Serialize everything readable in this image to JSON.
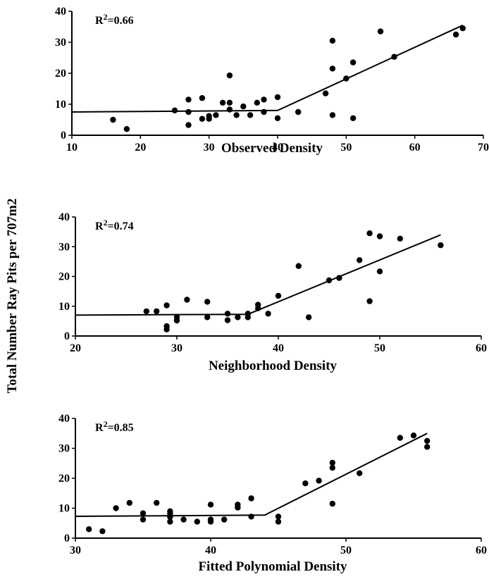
{
  "ylabel": "Total Number Ray Pits per 707m2",
  "chart_data": [
    {
      "type": "scatter",
      "xlabel": "Observed Density",
      "r2_prefix": "R",
      "r2_exp": "2",
      "r2_value": "=0.66",
      "xlim": [
        10,
        70
      ],
      "ylim": [
        0,
        40
      ],
      "xticks": [
        10,
        20,
        30,
        40,
        50,
        60,
        70
      ],
      "yticks": [
        0,
        10,
        20,
        30,
        40
      ],
      "fit_line": [
        [
          10,
          7.5
        ],
        [
          40,
          8
        ],
        [
          67,
          35.5
        ]
      ],
      "points": [
        [
          16,
          5
        ],
        [
          18,
          2
        ],
        [
          25,
          8
        ],
        [
          27,
          11.5
        ],
        [
          27,
          7.5
        ],
        [
          27,
          3.3
        ],
        [
          29,
          12
        ],
        [
          29,
          5.3
        ],
        [
          30,
          6.2
        ],
        [
          30,
          5.3
        ],
        [
          31,
          6.5
        ],
        [
          32,
          10.5
        ],
        [
          33,
          10.5
        ],
        [
          33,
          19.3
        ],
        [
          33,
          8.3
        ],
        [
          34,
          6.5
        ],
        [
          35,
          9.3
        ],
        [
          36,
          6.5
        ],
        [
          37,
          10.5
        ],
        [
          38,
          11.5
        ],
        [
          38,
          7.5
        ],
        [
          40,
          12.3
        ],
        [
          40,
          5.5
        ],
        [
          43,
          7.5
        ],
        [
          47,
          13.5
        ],
        [
          48,
          30.5
        ],
        [
          48,
          21.5
        ],
        [
          48,
          6.5
        ],
        [
          50,
          18.3
        ],
        [
          51,
          23.5
        ],
        [
          51,
          5.5
        ],
        [
          55,
          33.5
        ],
        [
          57,
          25.3
        ],
        [
          66,
          32.5
        ],
        [
          67,
          34.5
        ]
      ]
    },
    {
      "type": "scatter",
      "xlabel": "Neighborhood Density",
      "r2_prefix": "R",
      "r2_exp": "2",
      "r2_value": "=0.74",
      "xlim": [
        20,
        60
      ],
      "ylim": [
        0,
        40
      ],
      "xticks": [
        20,
        30,
        40,
        50,
        60
      ],
      "yticks": [
        0,
        10,
        20,
        30,
        40
      ],
      "fit_line": [
        [
          20,
          7
        ],
        [
          37,
          7.3
        ],
        [
          56,
          34
        ]
      ],
      "points": [
        [
          27,
          8.3
        ],
        [
          28,
          8.3
        ],
        [
          29,
          10.3
        ],
        [
          29,
          3.3
        ],
        [
          29,
          2.2
        ],
        [
          30,
          6.3
        ],
        [
          30,
          5.2
        ],
        [
          31,
          12.2
        ],
        [
          33,
          11.5
        ],
        [
          33,
          6.3
        ],
        [
          35,
          7.5
        ],
        [
          35,
          5.3
        ],
        [
          36,
          6.3
        ],
        [
          37,
          7.5
        ],
        [
          37,
          6.3
        ],
        [
          38,
          10.5
        ],
        [
          38,
          9.3
        ],
        [
          39,
          7.5
        ],
        [
          40,
          13.5
        ],
        [
          42,
          23.5
        ],
        [
          43,
          6.3
        ],
        [
          45,
          18.7
        ],
        [
          46,
          19.5
        ],
        [
          48,
          25.5
        ],
        [
          49,
          34.5
        ],
        [
          49,
          11.7
        ],
        [
          50,
          33.5
        ],
        [
          50,
          21.7
        ],
        [
          52,
          32.7
        ],
        [
          56,
          30.5
        ]
      ]
    },
    {
      "type": "scatter",
      "xlabel": "Fitted Polynomial Density",
      "r2_prefix": "R",
      "r2_exp": "2",
      "r2_value": "=0.85",
      "xlim": [
        30,
        60
      ],
      "ylim": [
        0,
        40
      ],
      "xticks": [
        30,
        40,
        50,
        60
      ],
      "yticks": [
        0,
        10,
        20,
        30,
        40
      ],
      "fit_line": [
        [
          30,
          7.3
        ],
        [
          44,
          7.7
        ],
        [
          56,
          35
        ]
      ],
      "points": [
        [
          31,
          3
        ],
        [
          32,
          2.3
        ],
        [
          33,
          10
        ],
        [
          34,
          11.8
        ],
        [
          35,
          8.3
        ],
        [
          35,
          6.2
        ],
        [
          36,
          11.8
        ],
        [
          37,
          9
        ],
        [
          37,
          8.2
        ],
        [
          37,
          7.1
        ],
        [
          37,
          5.5
        ],
        [
          38,
          6.2
        ],
        [
          39,
          5.5
        ],
        [
          40,
          11.2
        ],
        [
          40,
          6.2
        ],
        [
          40,
          5.5
        ],
        [
          41,
          6.2
        ],
        [
          42,
          11.2
        ],
        [
          42,
          10.2
        ],
        [
          43,
          13.3
        ],
        [
          43,
          7.2
        ],
        [
          45,
          7.2
        ],
        [
          45,
          5.5
        ],
        [
          47,
          18.3
        ],
        [
          48,
          19.2
        ],
        [
          49,
          25.2
        ],
        [
          49,
          23.5
        ],
        [
          49,
          11.5
        ],
        [
          51,
          21.7
        ],
        [
          54,
          33.5
        ],
        [
          55,
          34.3
        ],
        [
          56,
          32.5
        ],
        [
          56,
          30.5
        ]
      ]
    }
  ]
}
